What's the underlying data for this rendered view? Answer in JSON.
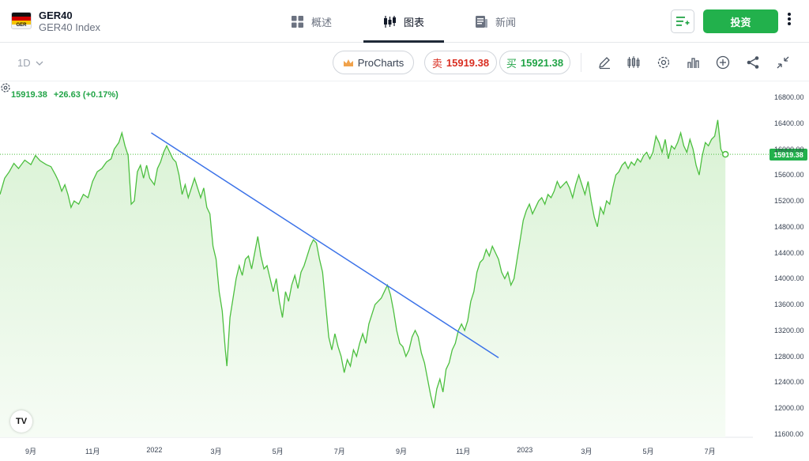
{
  "header": {
    "logo_text": "GER",
    "symbol": "GER40",
    "symbol_subtitle": "GER40 Index",
    "tabs": [
      {
        "label": "概述",
        "icon": "grid-icon"
      },
      {
        "label": "图表",
        "icon": "candlestick-icon"
      },
      {
        "label": "新闻",
        "icon": "news-icon"
      }
    ],
    "invest_label": "投资"
  },
  "toolbar": {
    "timeframe": "1D",
    "procharts_label": "ProCharts",
    "sell_label": "卖",
    "sell_price": "15919.38",
    "buy_label": "买",
    "buy_price": "15921.38",
    "tools": [
      "draw-icon",
      "candles-icon",
      "settings-icon",
      "indicators-icon",
      "add-icon",
      "share-icon",
      "collapse-icon"
    ]
  },
  "chart_data": {
    "type": "area",
    "last_price": "15919.38",
    "change": "+26.63",
    "change_pct": "(+0.17%)",
    "price_tag": "15919.38",
    "y_ticks": [
      "16800.00",
      "16400.00",
      "16000.00",
      "15600.00",
      "15200.00",
      "14800.00",
      "14400.00",
      "14000.00",
      "13600.00",
      "13200.00",
      "12800.00",
      "12400.00",
      "12000.00",
      "11600.00"
    ],
    "ylim": [
      11600,
      16800
    ],
    "x_ticks": [
      "9月",
      "11月",
      "2022",
      "3月",
      "5月",
      "7月",
      "9月",
      "11月",
      "2023",
      "3月",
      "5月",
      "7月"
    ],
    "x_tick_months": [
      1,
      3,
      5,
      7,
      9,
      11,
      13,
      15,
      17,
      19,
      21,
      23
    ],
    "xlim": [
      0,
      24.35
    ],
    "series": [
      {
        "values": [
          [
            0.0,
            15300
          ],
          [
            0.15,
            15550
          ],
          [
            0.3,
            15650
          ],
          [
            0.45,
            15780
          ],
          [
            0.6,
            15700
          ],
          [
            0.8,
            15830
          ],
          [
            1.0,
            15760
          ],
          [
            1.15,
            15900
          ],
          [
            1.3,
            15820
          ],
          [
            1.5,
            15760
          ],
          [
            1.65,
            15730
          ],
          [
            1.8,
            15600
          ],
          [
            1.9,
            15500
          ],
          [
            2.0,
            15350
          ],
          [
            2.1,
            15450
          ],
          [
            2.2,
            15300
          ],
          [
            2.3,
            15100
          ],
          [
            2.4,
            15200
          ],
          [
            2.55,
            15150
          ],
          [
            2.7,
            15300
          ],
          [
            2.85,
            15250
          ],
          [
            3.0,
            15500
          ],
          [
            3.15,
            15650
          ],
          [
            3.3,
            15700
          ],
          [
            3.45,
            15800
          ],
          [
            3.6,
            15850
          ],
          [
            3.7,
            16000
          ],
          [
            3.85,
            16100
          ],
          [
            3.95,
            16250
          ],
          [
            4.05,
            16050
          ],
          [
            4.15,
            15900
          ],
          [
            4.25,
            15150
          ],
          [
            4.35,
            15200
          ],
          [
            4.45,
            15650
          ],
          [
            4.55,
            15750
          ],
          [
            4.65,
            15550
          ],
          [
            4.75,
            15750
          ],
          [
            4.85,
            15550
          ],
          [
            5.0,
            15450
          ],
          [
            5.1,
            15700
          ],
          [
            5.2,
            15800
          ],
          [
            5.3,
            15950
          ],
          [
            5.4,
            16050
          ],
          [
            5.5,
            15950
          ],
          [
            5.6,
            15850
          ],
          [
            5.7,
            15800
          ],
          [
            5.8,
            15600
          ],
          [
            5.9,
            15300
          ],
          [
            6.0,
            15450
          ],
          [
            6.1,
            15250
          ],
          [
            6.2,
            15400
          ],
          [
            6.3,
            15550
          ],
          [
            6.4,
            15400
          ],
          [
            6.5,
            15250
          ],
          [
            6.6,
            15400
          ],
          [
            6.7,
            15100
          ],
          [
            6.8,
            15000
          ],
          [
            6.9,
            14500
          ],
          [
            7.0,
            14300
          ],
          [
            7.1,
            13800
          ],
          [
            7.2,
            13500
          ],
          [
            7.3,
            12900
          ],
          [
            7.35,
            12650
          ],
          [
            7.45,
            13400
          ],
          [
            7.55,
            13700
          ],
          [
            7.65,
            14000
          ],
          [
            7.75,
            14200
          ],
          [
            7.85,
            14050
          ],
          [
            7.95,
            14300
          ],
          [
            8.05,
            14350
          ],
          [
            8.15,
            14150
          ],
          [
            8.25,
            14400
          ],
          [
            8.35,
            14650
          ],
          [
            8.45,
            14350
          ],
          [
            8.55,
            14150
          ],
          [
            8.65,
            14200
          ],
          [
            8.75,
            14000
          ],
          [
            8.85,
            13800
          ],
          [
            8.95,
            14000
          ],
          [
            9.05,
            13650
          ],
          [
            9.15,
            13400
          ],
          [
            9.25,
            13800
          ],
          [
            9.35,
            13650
          ],
          [
            9.45,
            13900
          ],
          [
            9.55,
            14050
          ],
          [
            9.65,
            13850
          ],
          [
            9.75,
            14100
          ],
          [
            9.85,
            14200
          ],
          [
            9.95,
            14350
          ],
          [
            10.05,
            14500
          ],
          [
            10.15,
            14600
          ],
          [
            10.25,
            14550
          ],
          [
            10.35,
            14300
          ],
          [
            10.45,
            14100
          ],
          [
            10.55,
            13600
          ],
          [
            10.65,
            13100
          ],
          [
            10.75,
            12900
          ],
          [
            10.85,
            13150
          ],
          [
            10.95,
            12950
          ],
          [
            11.05,
            12800
          ],
          [
            11.15,
            12550
          ],
          [
            11.25,
            12750
          ],
          [
            11.35,
            12650
          ],
          [
            11.45,
            12900
          ],
          [
            11.55,
            12800
          ],
          [
            11.65,
            13000
          ],
          [
            11.75,
            13150
          ],
          [
            11.85,
            13000
          ],
          [
            11.95,
            13300
          ],
          [
            12.05,
            13450
          ],
          [
            12.15,
            13600
          ],
          [
            12.25,
            13650
          ],
          [
            12.35,
            13700
          ],
          [
            12.45,
            13800
          ],
          [
            12.55,
            13900
          ],
          [
            12.65,
            13750
          ],
          [
            12.75,
            13500
          ],
          [
            12.85,
            13200
          ],
          [
            12.95,
            13000
          ],
          [
            13.05,
            12950
          ],
          [
            13.15,
            12800
          ],
          [
            13.25,
            12900
          ],
          [
            13.35,
            13100
          ],
          [
            13.45,
            13200
          ],
          [
            13.55,
            13100
          ],
          [
            13.65,
            12850
          ],
          [
            13.75,
            12700
          ],
          [
            13.85,
            12450
          ],
          [
            13.95,
            12200
          ],
          [
            14.05,
            12000
          ],
          [
            14.15,
            12300
          ],
          [
            14.25,
            12450
          ],
          [
            14.35,
            12250
          ],
          [
            14.45,
            12600
          ],
          [
            14.55,
            12700
          ],
          [
            14.65,
            12900
          ],
          [
            14.75,
            13000
          ],
          [
            14.85,
            13200
          ],
          [
            14.95,
            13300
          ],
          [
            15.05,
            13200
          ],
          [
            15.15,
            13350
          ],
          [
            15.25,
            13650
          ],
          [
            15.35,
            13800
          ],
          [
            15.45,
            14100
          ],
          [
            15.55,
            14250
          ],
          [
            15.65,
            14300
          ],
          [
            15.75,
            14450
          ],
          [
            15.85,
            14350
          ],
          [
            15.95,
            14500
          ],
          [
            16.05,
            14400
          ],
          [
            16.15,
            14300
          ],
          [
            16.25,
            14100
          ],
          [
            16.35,
            14000
          ],
          [
            16.45,
            14100
          ],
          [
            16.55,
            13900
          ],
          [
            16.65,
            14000
          ],
          [
            16.75,
            14300
          ],
          [
            16.85,
            14600
          ],
          [
            16.95,
            14900
          ],
          [
            17.05,
            15050
          ],
          [
            17.15,
            15150
          ],
          [
            17.25,
            15000
          ],
          [
            17.35,
            15100
          ],
          [
            17.45,
            15200
          ],
          [
            17.55,
            15250
          ],
          [
            17.65,
            15150
          ],
          [
            17.75,
            15300
          ],
          [
            17.85,
            15250
          ],
          [
            17.95,
            15350
          ],
          [
            18.05,
            15500
          ],
          [
            18.15,
            15400
          ],
          [
            18.25,
            15450
          ],
          [
            18.35,
            15500
          ],
          [
            18.45,
            15400
          ],
          [
            18.55,
            15250
          ],
          [
            18.65,
            15450
          ],
          [
            18.75,
            15600
          ],
          [
            18.85,
            15450
          ],
          [
            18.95,
            15300
          ],
          [
            19.05,
            15500
          ],
          [
            19.15,
            15200
          ],
          [
            19.25,
            14950
          ],
          [
            19.35,
            14800
          ],
          [
            19.45,
            15100
          ],
          [
            19.55,
            15000
          ],
          [
            19.65,
            15200
          ],
          [
            19.75,
            15150
          ],
          [
            19.85,
            15400
          ],
          [
            19.95,
            15600
          ],
          [
            20.05,
            15650
          ],
          [
            20.15,
            15750
          ],
          [
            20.25,
            15800
          ],
          [
            20.35,
            15700
          ],
          [
            20.45,
            15800
          ],
          [
            20.55,
            15750
          ],
          [
            20.65,
            15850
          ],
          [
            20.75,
            15800
          ],
          [
            20.85,
            15900
          ],
          [
            20.95,
            15950
          ],
          [
            21.05,
            15850
          ],
          [
            21.15,
            15950
          ],
          [
            21.25,
            16200
          ],
          [
            21.35,
            16100
          ],
          [
            21.45,
            15950
          ],
          [
            21.55,
            16150
          ],
          [
            21.65,
            15850
          ],
          [
            21.75,
            16050
          ],
          [
            21.85,
            16000
          ],
          [
            21.95,
            16100
          ],
          [
            22.05,
            16250
          ],
          [
            22.15,
            16050
          ],
          [
            22.25,
            15950
          ],
          [
            22.35,
            16150
          ],
          [
            22.45,
            16000
          ],
          [
            22.55,
            15750
          ],
          [
            22.65,
            15600
          ],
          [
            22.75,
            15900
          ],
          [
            22.85,
            16100
          ],
          [
            22.95,
            16050
          ],
          [
            23.05,
            16150
          ],
          [
            23.15,
            16200
          ],
          [
            23.25,
            16450
          ],
          [
            23.35,
            16000
          ],
          [
            23.45,
            15900
          ],
          [
            23.5,
            15919
          ]
        ]
      }
    ],
    "trendline": {
      "start": [
        4.9,
        16250
      ],
      "end": [
        16.15,
        12780
      ],
      "color": "#3b72e8"
    },
    "line_color": "#4cbf3f",
    "fill_color": "#e6f6e3"
  }
}
